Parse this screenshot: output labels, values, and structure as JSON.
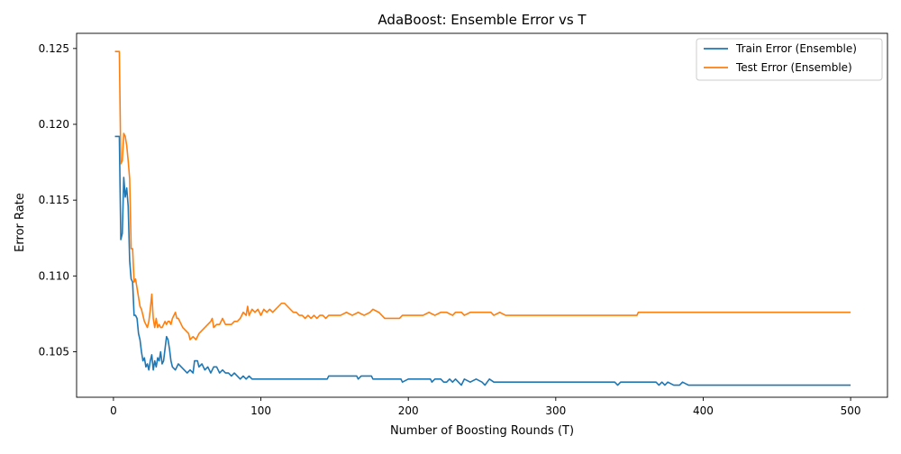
{
  "chart_data": {
    "type": "line",
    "title": "AdaBoost: Ensemble Error vs T",
    "xlabel": "Number of Boosting Rounds (T)",
    "ylabel": "Error Rate",
    "xlim": [
      -25,
      525
    ],
    "ylim": [
      0.102,
      0.126
    ],
    "xticks": [
      0,
      100,
      200,
      300,
      400,
      500
    ],
    "yticks": [
      0.105,
      0.11,
      0.115,
      0.12,
      0.125
    ],
    "ytick_labels": [
      "0.105",
      "0.110",
      "0.115",
      "0.120",
      "0.125"
    ],
    "grid": false,
    "legend_position": "top-right",
    "series": [
      {
        "name": "Train Error (Ensemble)",
        "color": "#1f77b4",
        "points": [
          [
            1,
            0.1192
          ],
          [
            4,
            0.1192
          ],
          [
            5,
            0.1124
          ],
          [
            6,
            0.1128
          ],
          [
            7,
            0.1165
          ],
          [
            8,
            0.1152
          ],
          [
            9,
            0.1158
          ],
          [
            10,
            0.1146
          ],
          [
            11,
            0.111
          ],
          [
            12,
            0.1098
          ],
          [
            13,
            0.1096
          ],
          [
            14,
            0.1074
          ],
          [
            15,
            0.1074
          ],
          [
            16,
            0.1072
          ],
          [
            17,
            0.1062
          ],
          [
            18,
            0.1058
          ],
          [
            19,
            0.105
          ],
          [
            20,
            0.1044
          ],
          [
            21,
            0.1046
          ],
          [
            22,
            0.104
          ],
          [
            23,
            0.1042
          ],
          [
            24,
            0.1038
          ],
          [
            25,
            0.1044
          ],
          [
            26,
            0.1048
          ],
          [
            27,
            0.1038
          ],
          [
            28,
            0.1044
          ],
          [
            29,
            0.104
          ],
          [
            30,
            0.1046
          ],
          [
            31,
            0.1044
          ],
          [
            32,
            0.105
          ],
          [
            33,
            0.1042
          ],
          [
            34,
            0.1044
          ],
          [
            35,
            0.1052
          ],
          [
            36,
            0.106
          ],
          [
            37,
            0.1058
          ],
          [
            38,
            0.1052
          ],
          [
            39,
            0.1044
          ],
          [
            40,
            0.104
          ],
          [
            42,
            0.1038
          ],
          [
            44,
            0.1042
          ],
          [
            46,
            0.104
          ],
          [
            48,
            0.1038
          ],
          [
            50,
            0.1036
          ],
          [
            52,
            0.1038
          ],
          [
            54,
            0.1036
          ],
          [
            55,
            0.1044
          ],
          [
            57,
            0.1044
          ],
          [
            58,
            0.104
          ],
          [
            60,
            0.1042
          ],
          [
            62,
            0.1038
          ],
          [
            64,
            0.104
          ],
          [
            66,
            0.1036
          ],
          [
            68,
            0.104
          ],
          [
            70,
            0.104
          ],
          [
            72,
            0.1036
          ],
          [
            74,
            0.1038
          ],
          [
            76,
            0.1036
          ],
          [
            78,
            0.1036
          ],
          [
            80,
            0.1034
          ],
          [
            82,
            0.1036
          ],
          [
            84,
            0.1034
          ],
          [
            86,
            0.1032
          ],
          [
            88,
            0.1034
          ],
          [
            90,
            0.1032
          ],
          [
            92,
            0.1034
          ],
          [
            94,
            0.1032
          ],
          [
            100,
            0.1032
          ],
          [
            120,
            0.1032
          ],
          [
            145,
            0.1032
          ],
          [
            146,
            0.1034
          ],
          [
            165,
            0.1034
          ],
          [
            166,
            0.1032
          ],
          [
            168,
            0.1034
          ],
          [
            175,
            0.1034
          ],
          [
            176,
            0.1032
          ],
          [
            195,
            0.1032
          ],
          [
            196,
            0.103
          ],
          [
            200,
            0.1032
          ],
          [
            215,
            0.1032
          ],
          [
            216,
            0.103
          ],
          [
            218,
            0.1032
          ],
          [
            222,
            0.1032
          ],
          [
            224,
            0.103
          ],
          [
            226,
            0.103
          ],
          [
            228,
            0.1032
          ],
          [
            230,
            0.103
          ],
          [
            232,
            0.1032
          ],
          [
            234,
            0.103
          ],
          [
            236,
            0.1028
          ],
          [
            238,
            0.1032
          ],
          [
            242,
            0.103
          ],
          [
            246,
            0.1032
          ],
          [
            250,
            0.103
          ],
          [
            252,
            0.1028
          ],
          [
            255,
            0.1032
          ],
          [
            258,
            0.103
          ],
          [
            262,
            0.103
          ],
          [
            300,
            0.103
          ],
          [
            340,
            0.103
          ],
          [
            342,
            0.1028
          ],
          [
            344,
            0.103
          ],
          [
            368,
            0.103
          ],
          [
            370,
            0.1028
          ],
          [
            372,
            0.103
          ],
          [
            374,
            0.1028
          ],
          [
            376,
            0.103
          ],
          [
            380,
            0.1028
          ],
          [
            384,
            0.1028
          ],
          [
            386,
            0.103
          ],
          [
            390,
            0.1028
          ],
          [
            398,
            0.1028
          ],
          [
            400,
            0.1028
          ],
          [
            450,
            0.1028
          ],
          [
            500,
            0.1028
          ]
        ]
      },
      {
        "name": "Test Error (Ensemble)",
        "color": "#ff7f0e",
        "points": [
          [
            1,
            0.1248
          ],
          [
            4,
            0.1248
          ],
          [
            5,
            0.1174
          ],
          [
            6,
            0.1176
          ],
          [
            7,
            0.1194
          ],
          [
            8,
            0.1192
          ],
          [
            9,
            0.1186
          ],
          [
            10,
            0.1176
          ],
          [
            11,
            0.1164
          ],
          [
            12,
            0.1118
          ],
          [
            13,
            0.1118
          ],
          [
            14,
            0.1096
          ],
          [
            15,
            0.1098
          ],
          [
            16,
            0.1092
          ],
          [
            17,
            0.1086
          ],
          [
            18,
            0.108
          ],
          [
            19,
            0.1078
          ],
          [
            20,
            0.1074
          ],
          [
            21,
            0.107
          ],
          [
            22,
            0.1068
          ],
          [
            23,
            0.1066
          ],
          [
            24,
            0.107
          ],
          [
            25,
            0.1078
          ],
          [
            26,
            0.1088
          ],
          [
            27,
            0.1072
          ],
          [
            28,
            0.1066
          ],
          [
            29,
            0.1072
          ],
          [
            30,
            0.1066
          ],
          [
            31,
            0.1068
          ],
          [
            32,
            0.1066
          ],
          [
            33,
            0.1066
          ],
          [
            34,
            0.1068
          ],
          [
            35,
            0.107
          ],
          [
            36,
            0.1068
          ],
          [
            37,
            0.107
          ],
          [
            38,
            0.107
          ],
          [
            39,
            0.1068
          ],
          [
            40,
            0.1072
          ],
          [
            41,
            0.1074
          ],
          [
            42,
            0.1076
          ],
          [
            43,
            0.1072
          ],
          [
            44,
            0.1072
          ],
          [
            45,
            0.107
          ],
          [
            47,
            0.1066
          ],
          [
            49,
            0.1064
          ],
          [
            51,
            0.1062
          ],
          [
            52,
            0.1058
          ],
          [
            54,
            0.106
          ],
          [
            56,
            0.1058
          ],
          [
            58,
            0.1062
          ],
          [
            60,
            0.1064
          ],
          [
            62,
            0.1066
          ],
          [
            64,
            0.1068
          ],
          [
            66,
            0.107
          ],
          [
            67,
            0.1072
          ],
          [
            68,
            0.1066
          ],
          [
            70,
            0.1068
          ],
          [
            72,
            0.1068
          ],
          [
            74,
            0.1072
          ],
          [
            76,
            0.1068
          ],
          [
            78,
            0.1068
          ],
          [
            80,
            0.1068
          ],
          [
            82,
            0.107
          ],
          [
            84,
            0.107
          ],
          [
            86,
            0.1072
          ],
          [
            88,
            0.1076
          ],
          [
            90,
            0.1074
          ],
          [
            91,
            0.108
          ],
          [
            92,
            0.1074
          ],
          [
            94,
            0.1078
          ],
          [
            96,
            0.1076
          ],
          [
            98,
            0.1078
          ],
          [
            100,
            0.1074
          ],
          [
            102,
            0.1078
          ],
          [
            104,
            0.1076
          ],
          [
            106,
            0.1078
          ],
          [
            108,
            0.1076
          ],
          [
            110,
            0.1078
          ],
          [
            112,
            0.108
          ],
          [
            114,
            0.1082
          ],
          [
            116,
            0.1082
          ],
          [
            118,
            0.108
          ],
          [
            120,
            0.1078
          ],
          [
            122,
            0.1076
          ],
          [
            124,
            0.1076
          ],
          [
            126,
            0.1074
          ],
          [
            128,
            0.1074
          ],
          [
            130,
            0.1072
          ],
          [
            132,
            0.1074
          ],
          [
            134,
            0.1072
          ],
          [
            136,
            0.1074
          ],
          [
            138,
            0.1072
          ],
          [
            140,
            0.1074
          ],
          [
            142,
            0.1074
          ],
          [
            144,
            0.1072
          ],
          [
            146,
            0.1074
          ],
          [
            150,
            0.1074
          ],
          [
            154,
            0.1074
          ],
          [
            158,
            0.1076
          ],
          [
            162,
            0.1074
          ],
          [
            166,
            0.1076
          ],
          [
            170,
            0.1074
          ],
          [
            174,
            0.1076
          ],
          [
            176,
            0.1078
          ],
          [
            180,
            0.1076
          ],
          [
            184,
            0.1072
          ],
          [
            190,
            0.1072
          ],
          [
            194,
            0.1072
          ],
          [
            196,
            0.1074
          ],
          [
            210,
            0.1074
          ],
          [
            214,
            0.1076
          ],
          [
            218,
            0.1074
          ],
          [
            222,
            0.1076
          ],
          [
            226,
            0.1076
          ],
          [
            230,
            0.1074
          ],
          [
            232,
            0.1076
          ],
          [
            236,
            0.1076
          ],
          [
            238,
            0.1074
          ],
          [
            242,
            0.1076
          ],
          [
            248,
            0.1076
          ],
          [
            256,
            0.1076
          ],
          [
            258,
            0.1074
          ],
          [
            262,
            0.1076
          ],
          [
            266,
            0.1074
          ],
          [
            300,
            0.1074
          ],
          [
            340,
            0.1074
          ],
          [
            355,
            0.1074
          ],
          [
            356,
            0.1076
          ],
          [
            400,
            0.1076
          ],
          [
            450,
            0.1076
          ],
          [
            500,
            0.1076
          ]
        ]
      }
    ]
  }
}
